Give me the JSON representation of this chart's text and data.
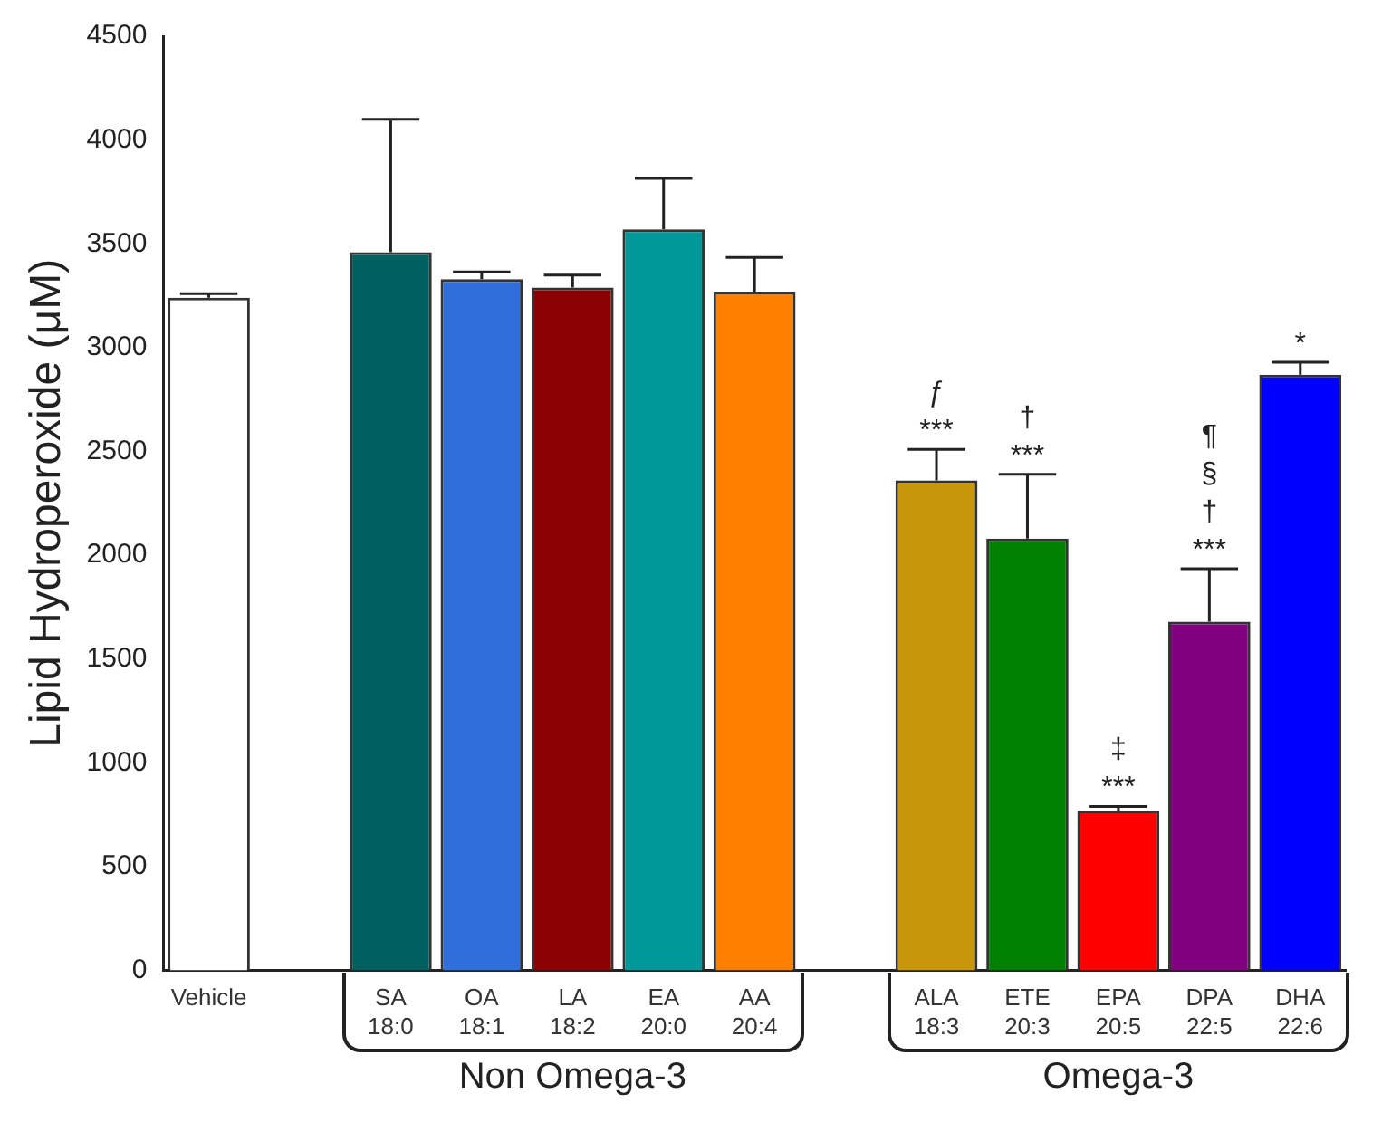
{
  "chart_data": {
    "type": "bar",
    "ylabel": "Lipid Hydroperoxide (μM)",
    "categories": [
      "Vehicle",
      null,
      "SA\n18:0",
      "OA\n18:1",
      "LA\n18:2",
      "EA\n20:0",
      "AA\n20:4",
      null,
      "ALA\n18:3",
      "ETE\n20:3",
      "EPA\n20:5",
      "DPA\n22:5",
      "DHA\n22:6"
    ],
    "values": [
      3240,
      null,
      3460,
      3330,
      3290,
      3570,
      3270,
      null,
      2360,
      2080,
      770,
      1680,
      2870
    ],
    "errors": [
      [
        3240,
        3260
      ],
      null,
      [
        3460,
        4100
      ],
      [
        3330,
        3365
      ],
      [
        3290,
        3350
      ],
      [
        3570,
        3815
      ],
      [
        3270,
        3435
      ],
      null,
      [
        2360,
        2510
      ],
      [
        2080,
        2390
      ],
      [
        770,
        790
      ],
      [
        1680,
        1935
      ],
      [
        2870,
        2930
      ]
    ],
    "colors": [
      "#ffffff",
      "#ffffff",
      "#006060",
      "#2f6fdb",
      "#8b0000",
      "#009999",
      "#ff8000",
      "#ffffff",
      "#c8960a",
      "#008000",
      "#ff0000",
      "#800080",
      "#0000ff"
    ],
    "ylim": [
      0,
      4500
    ],
    "yticks": [
      0,
      500,
      1000,
      1500,
      2000,
      2500,
      3000,
      3500,
      4000,
      4500
    ],
    "grid": false,
    "legend": false,
    "annotations": [
      {
        "text": "ƒ\n***",
        "x": "ALA\n18:3",
        "y": 2510
      },
      {
        "text": "†\n***",
        "x": "ETE\n20:3",
        "y": 2390
      },
      {
        "text": "‡\n***",
        "x": "EPA\n20:5",
        "y": 790
      },
      {
        "text": "¶\n§\n†\n***",
        "x": "DPA\n22:5",
        "y": 1935
      },
      {
        "text": "*",
        "x": "DHA\n22:6",
        "y": 2930
      },
      "Non Omega-3",
      "Omega-3"
    ]
  }
}
